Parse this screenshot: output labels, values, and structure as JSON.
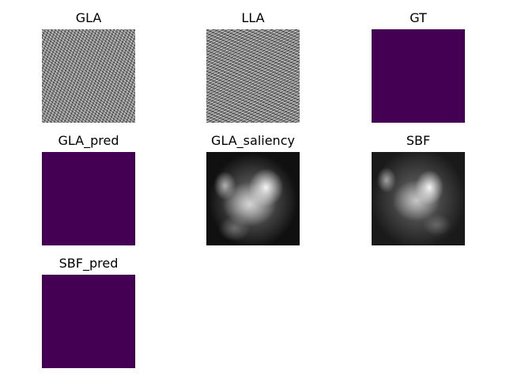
{
  "figure": {
    "panels": [
      {
        "title": "GLA",
        "image": "grayscale-noise"
      },
      {
        "title": "LLA",
        "image": "grayscale-noise"
      },
      {
        "title": "GT",
        "image": "solid-fill",
        "color": "#440154"
      },
      {
        "title": "GLA_pred",
        "image": "solid-fill",
        "color": "#440154"
      },
      {
        "title": "GLA_saliency",
        "image": "grayscale-saliency-map"
      },
      {
        "title": "SBF",
        "image": "grayscale-saliency-map"
      },
      {
        "title": "SBF_pred",
        "image": "solid-fill",
        "color": "#440154"
      }
    ]
  }
}
